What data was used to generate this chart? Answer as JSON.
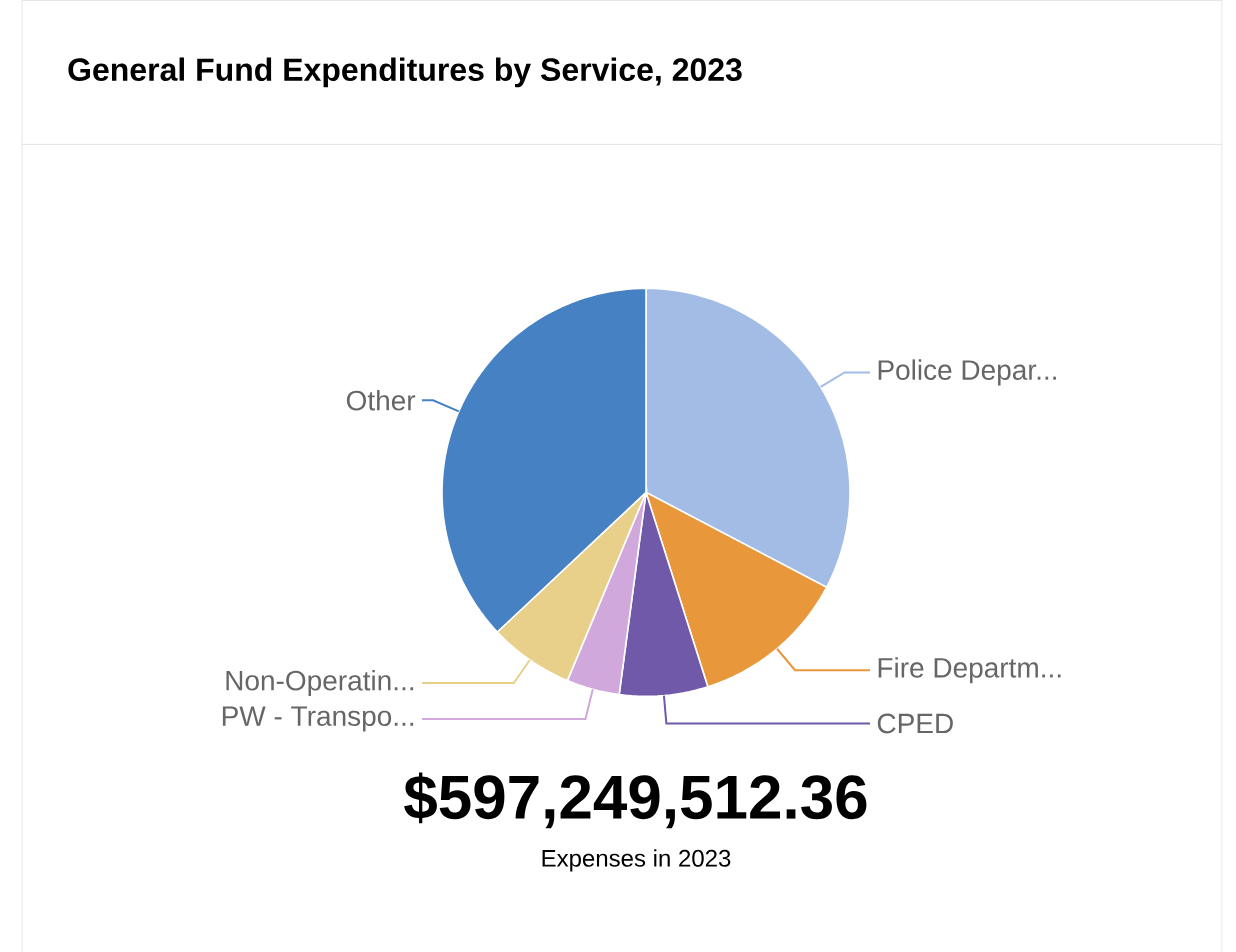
{
  "chart_data": {
    "type": "pie",
    "title": "General Fund Expenditures by Service, 2023",
    "categories": [
      "Police Depar...",
      "Fire Departm...",
      "CPED",
      "PW - Transpo...",
      "Non-Operatin...",
      "Other"
    ],
    "values": [
      32.7,
      12.4,
      7.0,
      4.2,
      6.7,
      37.0
    ],
    "colors": [
      "#a3bce6",
      "#e8973a",
      "#7059a8",
      "#d0a8dc",
      "#e8d08a",
      "#4681c3"
    ],
    "annotations": [
      "$597,249,512.36",
      "Expenses in 2023"
    ]
  }
}
